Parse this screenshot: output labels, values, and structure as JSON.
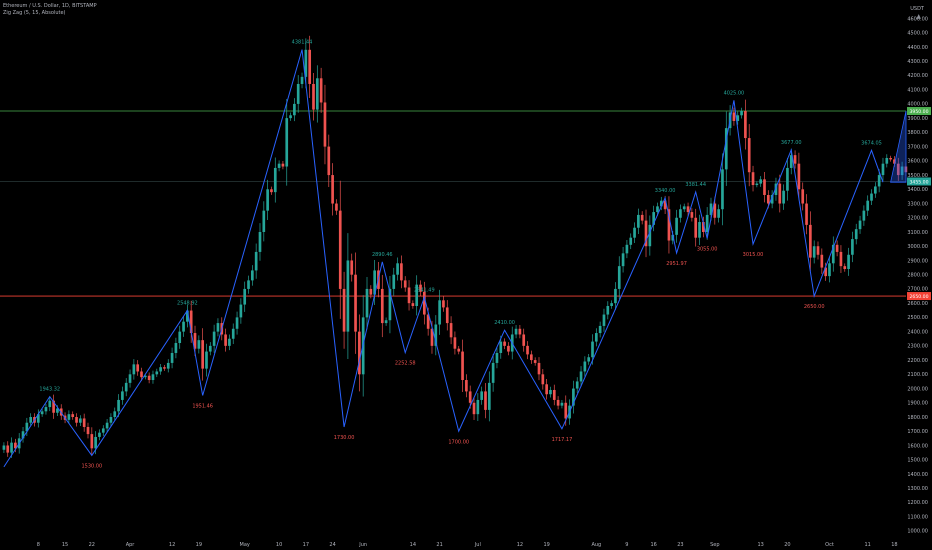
{
  "header": {
    "symbol": "Ethereum / U.S. Dollar, 1D, BITSTAMP",
    "indicator": "Zig Zag (5, 15, Absolute)"
  },
  "currency": "USDT",
  "colors": {
    "up": "#26a69a",
    "down": "#ef5350",
    "zigzag": "#2962ff",
    "hline_green": "#4caf50",
    "hline_red": "#f44336",
    "projection": "#2962ff",
    "axis_text": "#b2b5be",
    "label_high": "#26a69a",
    "label_low": "#ef5350"
  },
  "chart_data": {
    "type": "candlestick",
    "y_ticks": [
      1000,
      1100,
      1200,
      1300,
      1400,
      1500,
      1600,
      1700,
      1800,
      1900,
      2000,
      2100,
      2200,
      2300,
      2400,
      2500,
      2600,
      2700,
      2800,
      2900,
      3000,
      3100,
      3200,
      3300,
      3400,
      3500,
      3600,
      3700,
      3800,
      3900,
      4000,
      4100,
      4200,
      4300,
      4400,
      4500,
      4600
    ],
    "y_tick_labels": [
      "1000.00",
      "1100.00",
      "1200.00",
      "1300.00",
      "1400.00",
      "1500.00",
      "1600.00",
      "1700.00",
      "1800.00",
      "1900.00",
      "2000.00",
      "2100.00",
      "2200.00",
      "2300.00",
      "2400.00",
      "2500.00",
      "2600.00",
      "2700.00",
      "2800.00",
      "2900.00",
      "3000.00",
      "3100.00",
      "3200.00",
      "3300.00",
      "3400.00",
      "3500.00",
      "3600.00",
      "3700.00",
      "3800.00",
      "3900.00",
      "4000.00",
      "4100.00",
      "4200.00",
      "4300.00",
      "4400.00",
      "4500.00",
      "4600.00"
    ],
    "ylim": [
      950,
      4730
    ],
    "x_ticks": [
      {
        "label": "8",
        "idx": 9
      },
      {
        "label": "15",
        "idx": 16
      },
      {
        "label": "22",
        "idx": 23
      },
      {
        "label": "Apr",
        "idx": 33
      },
      {
        "label": "12",
        "idx": 44
      },
      {
        "label": "19",
        "idx": 51
      },
      {
        "label": "May",
        "idx": 63
      },
      {
        "label": "10",
        "idx": 72
      },
      {
        "label": "17",
        "idx": 79
      },
      {
        "label": "24",
        "idx": 86
      },
      {
        "label": "Jun",
        "idx": 94
      },
      {
        "label": "14",
        "idx": 107
      },
      {
        "label": "21",
        "idx": 114
      },
      {
        "label": "Jul",
        "idx": 124
      },
      {
        "label": "12",
        "idx": 135
      },
      {
        "label": "19",
        "idx": 142
      },
      {
        "label": "Aug",
        "idx": 155
      },
      {
        "label": "9",
        "idx": 163
      },
      {
        "label": "16",
        "idx": 170
      },
      {
        "label": "23",
        "idx": 177
      },
      {
        "label": "Sep",
        "idx": 186
      },
      {
        "label": "13",
        "idx": 198
      },
      {
        "label": "20",
        "idx": 205
      },
      {
        "label": "Oct",
        "idx": 216
      },
      {
        "label": "11",
        "idx": 226
      },
      {
        "label": "18",
        "idx": 233
      }
    ],
    "x_count": 236,
    "closes": [
      1600,
      1550,
      1620,
      1580,
      1650,
      1700,
      1760,
      1800,
      1760,
      1820,
      1840,
      1870,
      1915,
      1830,
      1860,
      1810,
      1780,
      1820,
      1800,
      1760,
      1790,
      1730,
      1680,
      1580,
      1660,
      1690,
      1720,
      1760,
      1800,
      1840,
      1920,
      1980,
      2040,
      2100,
      2170,
      2120,
      2080,
      2090,
      2060,
      2100,
      2120,
      2150,
      2140,
      2180,
      2250,
      2320,
      2400,
      2470,
      2548,
      2390,
      2280,
      2340,
      2140,
      2260,
      2300,
      2400,
      2460,
      2380,
      2300,
      2350,
      2420,
      2500,
      2590,
      2700,
      2760,
      2830,
      2960,
      3100,
      3250,
      3400,
      3380,
      3550,
      3580,
      3560,
      3900,
      3920,
      4000,
      4140,
      4190,
      4380,
      4140,
      3960,
      4180,
      4010,
      3700,
      3500,
      3300,
      3250,
      2700,
      2400,
      2900,
      2800,
      2400,
      2100,
      2500,
      2700,
      2660,
      2830,
      2700,
      2460,
      2480,
      2700,
      2800,
      2880,
      2760,
      2710,
      2600,
      2580,
      2730,
      2680,
      2520,
      2420,
      2300,
      2450,
      2620,
      2570,
      2460,
      2360,
      2280,
      2260,
      2060,
      1980,
      1900,
      1820,
      1920,
      1980,
      1850,
      2040,
      2180,
      2250,
      2330,
      2300,
      2260,
      2380,
      2420,
      2380,
      2300,
      2240,
      2200,
      2180,
      2100,
      2030,
      1960,
      1990,
      1920,
      1880,
      1900,
      1790,
      1880,
      2000,
      2050,
      2120,
      2190,
      2220,
      2330,
      2390,
      2440,
      2520,
      2580,
      2600,
      2700,
      2860,
      2950,
      3010,
      3060,
      3130,
      3220,
      3180,
      3000,
      3150,
      3240,
      3280,
      3320,
      3260,
      3040,
      3080,
      3200,
      3260,
      3280,
      3240,
      3200,
      3060,
      3170,
      3100,
      3220,
      3300,
      3200,
      3260,
      3540,
      3830,
      3940,
      3880,
      3920,
      3950,
      3760,
      3520,
      3430,
      3440,
      3470,
      3360,
      3300,
      3360,
      3440,
      3300,
      3390,
      3550,
      3640,
      3580,
      3400,
      3300,
      3150,
      2920,
      3000,
      2940,
      2850,
      2790,
      2880,
      3010,
      2960,
      2860,
      2840,
      2940,
      3050,
      3120,
      3180,
      3250,
      3320,
      3370,
      3420,
      3500,
      3580,
      3620,
      3610,
      3580,
      3500,
      3560,
      3520
    ],
    "zigzag": [
      {
        "idx": 0,
        "value": 1450
      },
      {
        "idx": 12,
        "value": 1943.32
      },
      {
        "idx": 23,
        "value": 1530
      },
      {
        "idx": 48,
        "value": 2548.92
      },
      {
        "idx": 52,
        "value": 1951.46
      },
      {
        "idx": 78,
        "value": 4381.44
      },
      {
        "idx": 89,
        "value": 1730
      },
      {
        "idx": 99,
        "value": 2890.46
      },
      {
        "idx": 105,
        "value": 2252.58
      },
      {
        "idx": 110,
        "value": 2641.49
      },
      {
        "idx": 119,
        "value": 1700
      },
      {
        "idx": 131,
        "value": 2410
      },
      {
        "idx": 146,
        "value": 1717.17
      },
      {
        "idx": 173,
        "value": 3340
      },
      {
        "idx": 176,
        "value": 2951.97
      },
      {
        "idx": 181,
        "value": 3381.44
      },
      {
        "idx": 184,
        "value": 3055
      },
      {
        "idx": 191,
        "value": 4025
      },
      {
        "idx": 196,
        "value": 3015
      },
      {
        "idx": 206,
        "value": 3677
      },
      {
        "idx": 212,
        "value": 2650
      },
      {
        "idx": 227,
        "value": 3674.05
      },
      {
        "idx": 230,
        "value": 3450
      }
    ],
    "pivot_labels": [
      {
        "idx": 12,
        "value": 1943.32,
        "text": "1943.32",
        "kind": "high"
      },
      {
        "idx": 23,
        "value": 1530,
        "text": "1530.00",
        "kind": "low"
      },
      {
        "idx": 48,
        "value": 2548.92,
        "text": "2548.92",
        "kind": "high"
      },
      {
        "idx": 52,
        "value": 1951.46,
        "text": "1951.46",
        "kind": "low"
      },
      {
        "idx": 78,
        "value": 4381.44,
        "text": "4381.44",
        "kind": "high"
      },
      {
        "idx": 89,
        "value": 1730,
        "text": "1730.00",
        "kind": "low"
      },
      {
        "idx": 99,
        "value": 2890.46,
        "text": "2890.46",
        "kind": "high"
      },
      {
        "idx": 105,
        "value": 2252.58,
        "text": "2252.58",
        "kind": "low"
      },
      {
        "idx": 110,
        "value": 2641.49,
        "text": "2641.49",
        "kind": "high"
      },
      {
        "idx": 119,
        "value": 1700,
        "text": "1700.00",
        "kind": "low"
      },
      {
        "idx": 131,
        "value": 2410,
        "text": "2410.00",
        "kind": "high"
      },
      {
        "idx": 146,
        "value": 1717.17,
        "text": "1717.17",
        "kind": "low"
      },
      {
        "idx": 173,
        "value": 3340,
        "text": "3340.00",
        "kind": "high"
      },
      {
        "idx": 176,
        "value": 2951.97,
        "text": "2951.97",
        "kind": "low"
      },
      {
        "idx": 181,
        "value": 3381.44,
        "text": "3381.44",
        "kind": "high"
      },
      {
        "idx": 184,
        "value": 3055,
        "text": "3055.00",
        "kind": "low"
      },
      {
        "idx": 191,
        "value": 4025,
        "text": "4025.00",
        "kind": "high"
      },
      {
        "idx": 196,
        "value": 3015,
        "text": "3015.00",
        "kind": "low"
      },
      {
        "idx": 206,
        "value": 3677,
        "text": "3677.00",
        "kind": "high"
      },
      {
        "idx": 212,
        "value": 2650,
        "text": "2650.00",
        "kind": "low"
      },
      {
        "idx": 227,
        "value": 3674.05,
        "text": "3674.05",
        "kind": "high"
      }
    ],
    "h_lines": [
      {
        "value": 3950,
        "color": "#4caf50",
        "label": "3950.00"
      },
      {
        "value": 3455,
        "color": "#2a3a3a",
        "label": "3455.00"
      },
      {
        "value": 2650,
        "color": "#f44336",
        "label": "2650.00"
      }
    ],
    "projection": {
      "from_idx": 232,
      "from_value": 3450,
      "to_value": 3950
    },
    "grid": false,
    "legend": "none"
  }
}
